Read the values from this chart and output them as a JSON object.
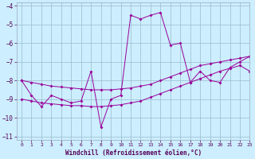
{
  "xlabel": "Windchill (Refroidissement éolien,°C)",
  "background_color": "#cceeff",
  "line_color": "#990099",
  "grid_color": "#99bbcc",
  "xlim": [
    -0.5,
    23
  ],
  "ylim": [
    -11.2,
    -3.8
  ],
  "xticks": [
    0,
    1,
    2,
    3,
    4,
    5,
    6,
    7,
    8,
    9,
    10,
    11,
    12,
    13,
    14,
    15,
    16,
    17,
    18,
    19,
    20,
    21,
    22,
    23
  ],
  "yticks": [
    -11,
    -10,
    -9,
    -8,
    -7,
    -6,
    -5,
    -4
  ],
  "line_main": {
    "x": [
      0,
      1,
      2,
      3,
      4,
      5,
      6,
      7,
      8,
      9,
      10,
      11,
      12,
      13,
      14,
      15,
      16,
      17,
      18,
      19,
      20,
      21,
      22,
      23
    ],
    "y": [
      -8.0,
      -8.8,
      -9.4,
      -8.8,
      -9.0,
      -9.2,
      -9.1,
      -7.5,
      -10.5,
      -9.0,
      -8.8,
      -4.5,
      -4.7,
      -4.5,
      -4.35,
      -6.1,
      -6.0,
      -8.1,
      -7.5,
      -8.0,
      -8.1,
      -7.3,
      -7.0,
      -6.7
    ]
  },
  "line_upper": {
    "x": [
      0,
      1,
      2,
      3,
      4,
      5,
      6,
      7,
      8,
      9,
      10,
      11,
      12,
      13,
      14,
      15,
      16,
      17,
      18,
      19,
      20,
      21,
      22,
      23
    ],
    "y": [
      -8.0,
      -8.1,
      -8.2,
      -8.3,
      -8.35,
      -8.4,
      -8.45,
      -8.5,
      -8.5,
      -8.5,
      -8.45,
      -8.4,
      -8.3,
      -8.2,
      -8.0,
      -7.8,
      -7.6,
      -7.4,
      -7.2,
      -7.1,
      -7.0,
      -6.9,
      -6.8,
      -6.7
    ]
  },
  "line_lower": {
    "x": [
      0,
      1,
      2,
      3,
      4,
      5,
      6,
      7,
      8,
      9,
      10,
      11,
      12,
      13,
      14,
      15,
      16,
      17,
      18,
      19,
      20,
      21,
      22,
      23
    ],
    "y": [
      -9.0,
      -9.1,
      -9.2,
      -9.25,
      -9.3,
      -9.35,
      -9.35,
      -9.4,
      -9.4,
      -9.35,
      -9.3,
      -9.2,
      -9.1,
      -8.9,
      -8.7,
      -8.5,
      -8.3,
      -8.1,
      -7.9,
      -7.7,
      -7.5,
      -7.35,
      -7.2,
      -7.5
    ]
  }
}
